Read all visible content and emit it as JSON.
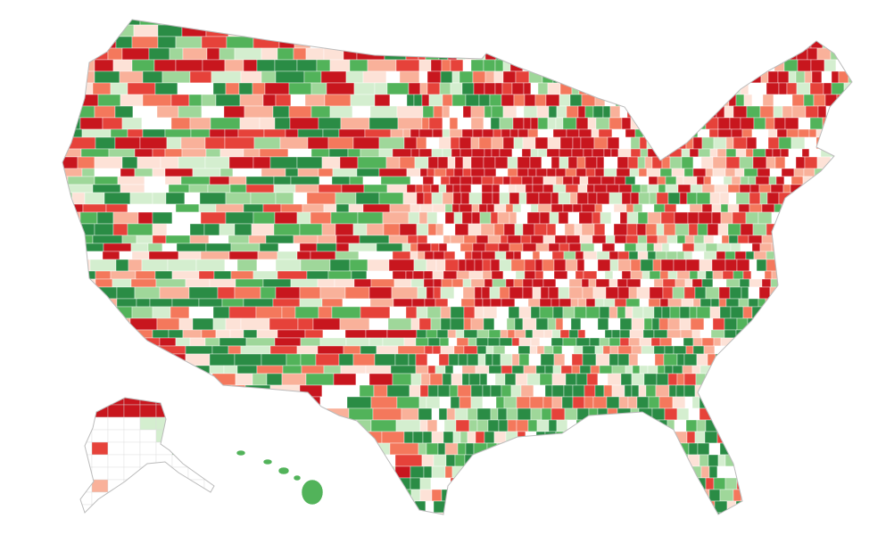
{
  "map": {
    "palette": [
      "#c8161e",
      "#e6423a",
      "#f4785c",
      "#f9b19a",
      "#fde2d7",
      "#ffffff",
      "#d4eecf",
      "#9fd79a",
      "#52b35a",
      "#2a8c45"
    ]
  }
}
